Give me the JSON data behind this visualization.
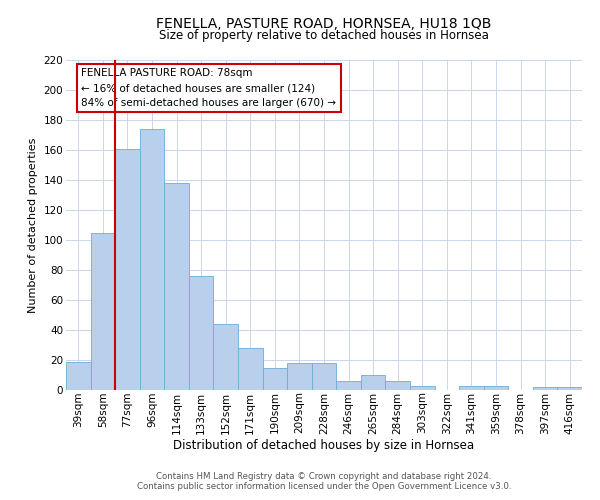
{
  "title": "FENELLA, PASTURE ROAD, HORNSEA, HU18 1QB",
  "subtitle": "Size of property relative to detached houses in Hornsea",
  "xlabel": "Distribution of detached houses by size in Hornsea",
  "ylabel": "Number of detached properties",
  "categories": [
    "39sqm",
    "58sqm",
    "77sqm",
    "96sqm",
    "114sqm",
    "133sqm",
    "152sqm",
    "171sqm",
    "190sqm",
    "209sqm",
    "228sqm",
    "246sqm",
    "265sqm",
    "284sqm",
    "303sqm",
    "322sqm",
    "341sqm",
    "359sqm",
    "378sqm",
    "397sqm",
    "416sqm"
  ],
  "values": [
    19,
    105,
    161,
    174,
    138,
    76,
    44,
    28,
    15,
    18,
    18,
    6,
    10,
    6,
    3,
    0,
    3,
    3,
    0,
    2,
    2
  ],
  "bar_color": "#b8d0eb",
  "bar_edge_color": "#6aaed6",
  "ylim": [
    0,
    220
  ],
  "yticks": [
    0,
    20,
    40,
    60,
    80,
    100,
    120,
    140,
    160,
    180,
    200,
    220
  ],
  "vline_x_index": 2,
  "vline_color": "#cc0000",
  "annotation_title": "FENELLA PASTURE ROAD: 78sqm",
  "annotation_line1": "← 16% of detached houses are smaller (124)",
  "annotation_line2": "84% of semi-detached houses are larger (670) →",
  "annotation_box_color": "#ffffff",
  "annotation_box_edge": "#cc0000",
  "footer1": "Contains HM Land Registry data © Crown copyright and database right 2024.",
  "footer2": "Contains public sector information licensed under the Open Government Licence v3.0.",
  "background_color": "#ffffff",
  "grid_color": "#c8d8eb",
  "title_fontsize": 10,
  "subtitle_fontsize": 8.5,
  "xlabel_fontsize": 8.5,
  "ylabel_fontsize": 8,
  "tick_fontsize": 7.5,
  "footer_fontsize": 6.2,
  "annotation_fontsize": 7.5
}
